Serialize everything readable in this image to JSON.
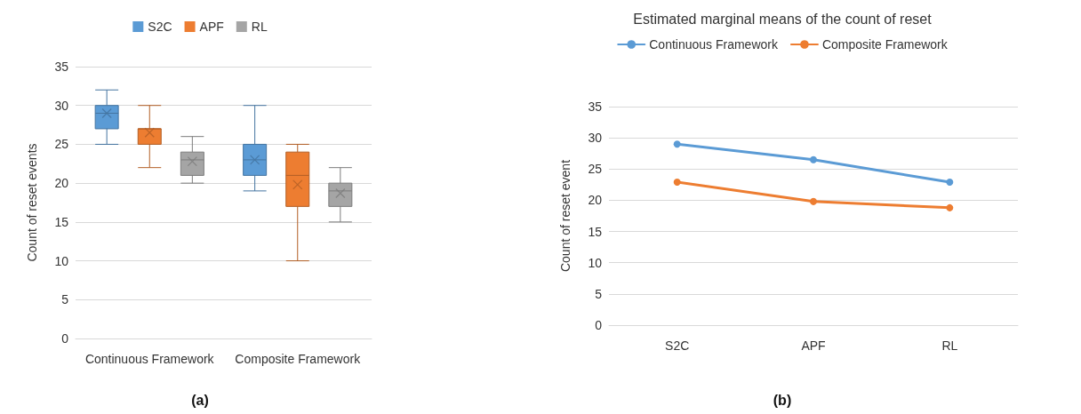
{
  "chart_data": [
    {
      "type": "box",
      "ylabel": "Count of reset events",
      "categories": [
        "Continuous Framework",
        "Composite Framework"
      ],
      "ylim": [
        0,
        35
      ],
      "yticks": [
        0,
        5,
        10,
        15,
        20,
        25,
        30,
        35
      ],
      "grid": "y",
      "legend": "top",
      "annotations": [
        "(a)"
      ],
      "series": [
        {
          "name": "S2C",
          "color": "#5b9bd5",
          "boxes": [
            {
              "low": 25,
              "q1": 27,
              "median": 29,
              "q3": 30,
              "high": 32,
              "mean": 29
            },
            {
              "low": 19,
              "q1": 21,
              "median": 23,
              "q3": 25,
              "high": 30,
              "mean": 23
            }
          ]
        },
        {
          "name": "APF",
          "color": "#ed7d31",
          "boxes": [
            {
              "low": 22,
              "q1": 25,
              "median": 27,
              "q3": 27,
              "high": 30,
              "mean": 26.5
            },
            {
              "low": 10,
              "q1": 17,
              "median": 21,
              "q3": 24,
              "high": 25,
              "mean": 19.8
            }
          ]
        },
        {
          "name": "RL",
          "color": "#a5a5a5",
          "boxes": [
            {
              "low": 20,
              "q1": 21,
              "median": 23,
              "q3": 24,
              "high": 26,
              "mean": 22.8
            },
            {
              "low": 15,
              "q1": 17,
              "median": 19,
              "q3": 20,
              "high": 22,
              "mean": 18.7
            }
          ]
        }
      ]
    },
    {
      "type": "line",
      "title": "Estimated marginal means of the count of reset",
      "ylabel": "Count of reset event",
      "categories": [
        "S2C",
        "APF",
        "RL"
      ],
      "ylim": [
        0,
        35
      ],
      "yticks": [
        0,
        5,
        10,
        15,
        20,
        25,
        30,
        35
      ],
      "grid": "y",
      "legend": "top",
      "marker": "circle",
      "line_style": "solid",
      "annotations": [
        "(b)"
      ],
      "series": [
        {
          "name": "Continuous Framework",
          "color": "#5b9bd5",
          "values": [
            29,
            26.5,
            22.9
          ]
        },
        {
          "name": "Composite Framework",
          "color": "#ed7d31",
          "values": [
            22.9,
            19.8,
            18.8
          ]
        }
      ]
    }
  ]
}
